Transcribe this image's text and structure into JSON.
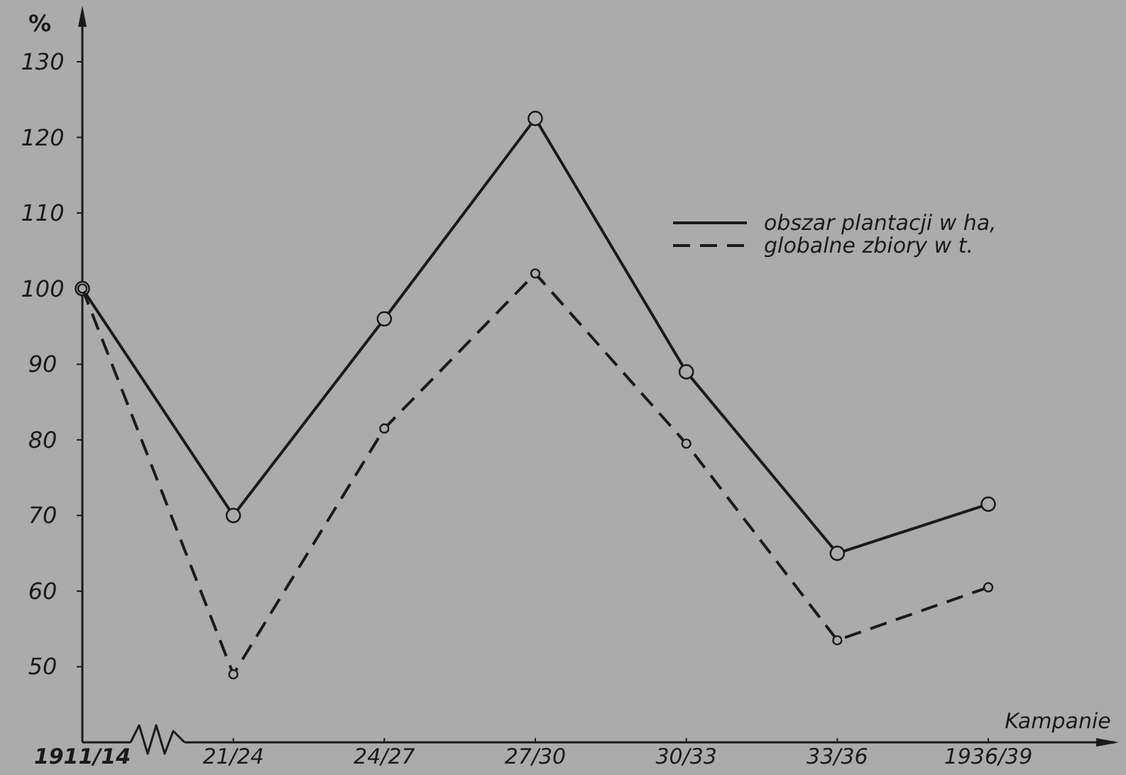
{
  "chart_data": {
    "type": "line",
    "ylabel": "%",
    "xlabel": "Kampanie",
    "categories": [
      "1911/14",
      "21/24",
      "24/27",
      "27/30",
      "30/33",
      "33/36",
      "1936/39"
    ],
    "series": [
      {
        "name": "obszar plantacji w ha,",
        "color": "#1a1a1a",
        "line_style": "solid",
        "values": [
          100,
          70,
          96,
          122.5,
          89,
          65,
          71.5
        ]
      },
      {
        "name": "globalne zbiory w t.",
        "color": "#1a1a1a",
        "line_style": "dashed",
        "values": [
          100,
          49,
          81.5,
          102,
          79.5,
          53.5,
          60.5
        ]
      }
    ],
    "ylim": [
      40,
      135
    ],
    "yticks": [
      50,
      60,
      70,
      80,
      90,
      100,
      110,
      120,
      130
    ],
    "grid": false,
    "legend": "top right",
    "marker": "circle"
  }
}
